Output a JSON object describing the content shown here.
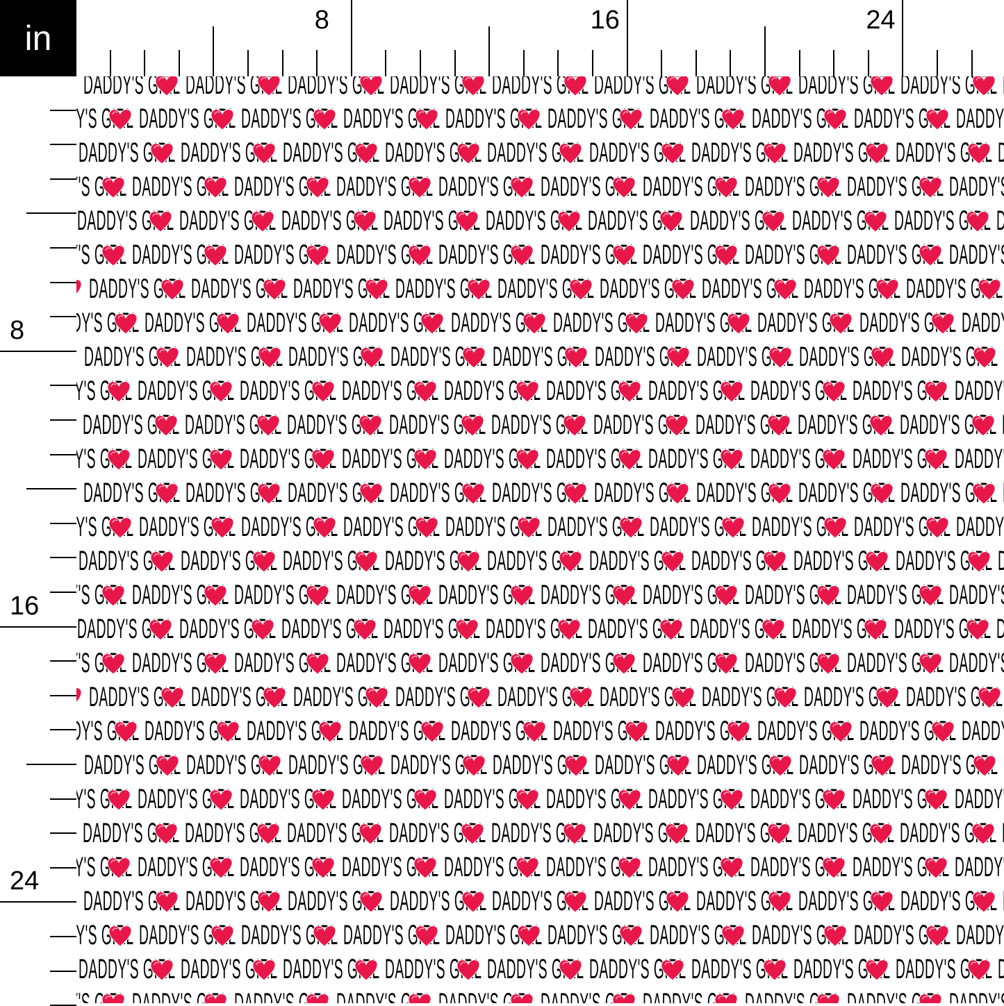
{
  "ruler": {
    "unit": "in",
    "top_labels": [
      "8",
      "16",
      "24"
    ],
    "left_labels": [
      "8",
      "16",
      "24"
    ]
  },
  "pattern": {
    "text": "DADDY'S GIRL",
    "heart_icon": "heart-icon",
    "heart_color": "#e8174a",
    "text_color": "#000000"
  }
}
